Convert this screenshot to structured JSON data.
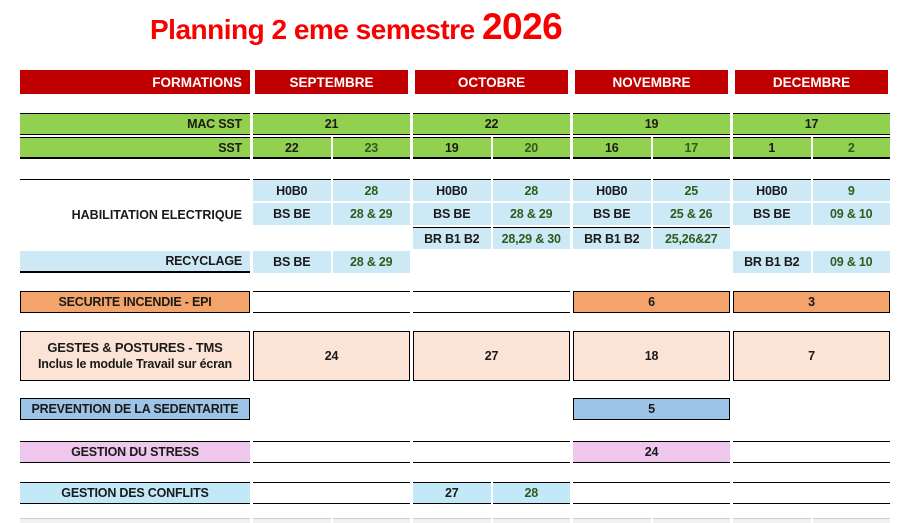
{
  "title": {
    "text": "Planning 2 eme semestre ",
    "year": "2026"
  },
  "colors": {
    "title_red": "#F80000",
    "header_red": "#C00000",
    "green": "#92D050",
    "light_blue": "#CDE9F6",
    "cyan": "#C3E9F8",
    "orange": "#F3A46B",
    "peach": "#FBE3D5",
    "medium_blue": "#9DC3E6",
    "pink": "#F0C7EC",
    "date_green": "#2E5B1E"
  },
  "header": {
    "formations": "FORMATIONS",
    "months": [
      "SEPTEMBRE",
      "OCTOBRE",
      "NOVEMBRE",
      "DECEMBRE"
    ]
  },
  "rows": {
    "mac_sst": {
      "label": "MAC SST",
      "values": [
        "21",
        "22",
        "19",
        "17"
      ]
    },
    "sst": {
      "label": "SST",
      "values": [
        [
          "22",
          "23"
        ],
        [
          "19",
          "20"
        ],
        [
          "16",
          "17"
        ],
        [
          "1",
          "2"
        ]
      ]
    },
    "habilitation": {
      "label": "HABILITATION ELECTRIQUE",
      "line1": [
        {
          "code": "H0B0",
          "dates": "28"
        },
        {
          "code": "H0B0",
          "dates": "28"
        },
        {
          "code": "H0B0",
          "dates": "25"
        },
        {
          "code": "H0B0",
          "dates": "9"
        }
      ],
      "line2": [
        {
          "code": "BS BE",
          "dates": "28 & 29"
        },
        {
          "code": "BS BE",
          "dates": "28 & 29"
        },
        {
          "code": "BS BE",
          "dates": "25 & 26"
        },
        {
          "code": "BS BE",
          "dates": "09 & 10"
        }
      ],
      "line3": [
        {
          "code": "BR B1 B2",
          "dates": "28,29 & 30"
        },
        {
          "code": "BR B1 B2",
          "dates": "25,26&27"
        }
      ]
    },
    "recyclage": {
      "label": "RECYCLAGE",
      "sep": {
        "code": "BS BE",
        "dates": "28 & 29"
      },
      "dec": {
        "code": "BR B1 B2",
        "dates": "09 & 10"
      }
    },
    "securite": {
      "label": "SECURITE INCENDIE - EPI",
      "nov": "6",
      "dec": "3"
    },
    "gestes": {
      "label_line1": "GESTES & POSTURES - TMS",
      "label_line2": "Inclus le module Travail sur écran",
      "values": [
        "24",
        "27",
        "18",
        "7"
      ]
    },
    "prevention": {
      "label": "PREVENTION DE LA SEDENTARITE",
      "nov": "5"
    },
    "stress": {
      "label": "GESTION DU STRESS",
      "nov": "24"
    },
    "conflits": {
      "label": "GESTION DES CONFLITS",
      "oct": [
        "27",
        "28"
      ]
    }
  }
}
